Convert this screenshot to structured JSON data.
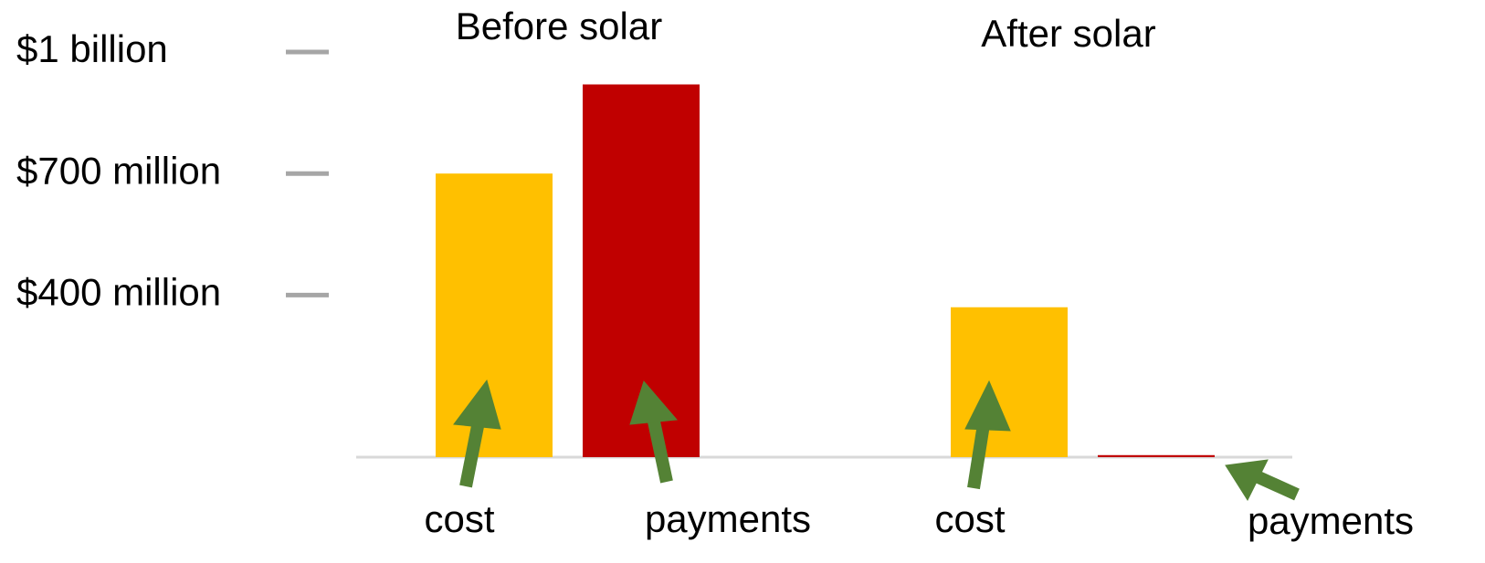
{
  "chart_data": {
    "type": "bar",
    "categories": [
      "Before solar",
      "After solar"
    ],
    "series": [
      {
        "name": "cost",
        "color": "#ffc000",
        "values": [
          700,
          370
        ]
      },
      {
        "name": "payments",
        "color": "#c00000",
        "values": [
          920,
          5
        ]
      }
    ],
    "ylim": [
      0,
      1000
    ],
    "yticks": [
      {
        "value": 400,
        "label": "$400 million"
      },
      {
        "value": 700,
        "label": "$700 million"
      },
      {
        "value": 1000,
        "label": "$1 billion"
      }
    ]
  }
}
